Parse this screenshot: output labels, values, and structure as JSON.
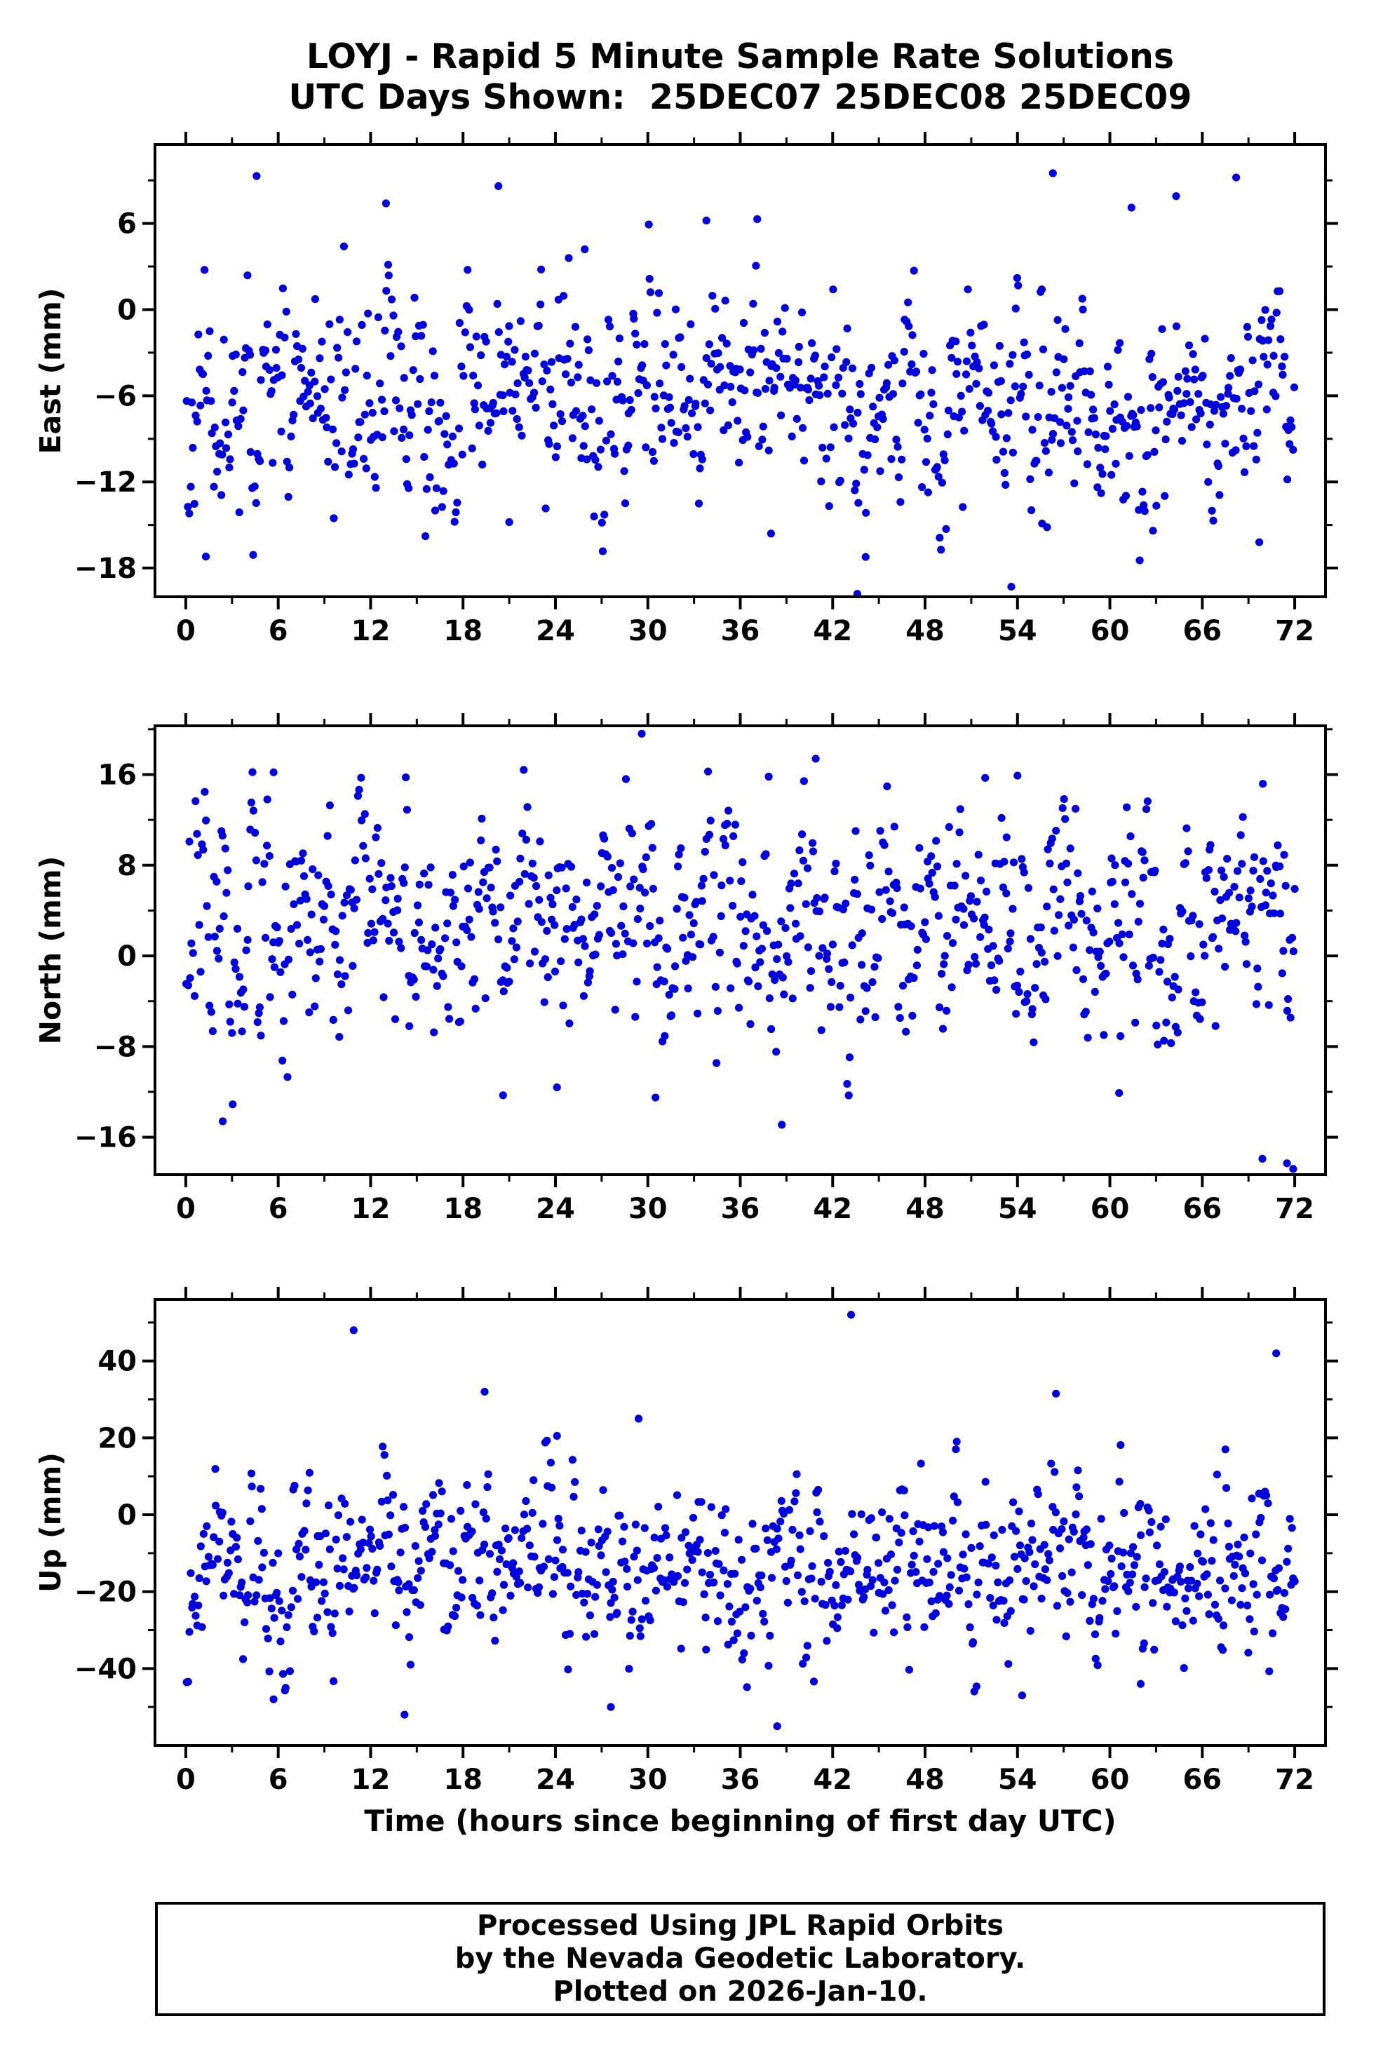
{
  "title": {
    "line1": "LOYJ - Rapid 5 Minute Sample Rate Solutions",
    "line2": "UTC Days Shown:  25DEC07 25DEC08 25DEC09"
  },
  "xlabel": "Time (hours since beginning of first day UTC)",
  "footer": {
    "line1": "Processed Using JPL Rapid Orbits",
    "line2": "by the Nevada Geodetic Laboratory.",
    "line3": "Plotted on 2026-Jan-10."
  },
  "marker_color": "#0000dd",
  "chart_data": [
    {
      "type": "scatter",
      "name": "east",
      "ylabel": "East (mm)",
      "xlim": [
        -2,
        74
      ],
      "ylim": [
        -20,
        11.5
      ],
      "xticks": [
        0,
        6,
        12,
        18,
        24,
        30,
        36,
        42,
        48,
        54,
        60,
        66,
        72
      ],
      "xminor_step": 3,
      "yticks": [
        -18,
        -12,
        -6,
        0,
        6
      ],
      "yminor_step": 3,
      "x_start": 0.05,
      "x_end": 72,
      "n_points": 860,
      "mean": -6.2,
      "std": 3.9,
      "rho": 0.5,
      "clip": [
        -17.5,
        8.2
      ],
      "seed": 11,
      "outliers": [
        [
          4.6,
          9.3
        ],
        [
          13.0,
          7.4
        ],
        [
          20.3,
          8.6
        ],
        [
          25.9,
          4.2
        ],
        [
          33.8,
          6.2
        ],
        [
          37.1,
          6.3
        ],
        [
          56.3,
          9.5
        ],
        [
          61.4,
          7.1
        ],
        [
          64.3,
          7.9
        ],
        [
          68.2,
          9.2
        ],
        [
          43.6,
          -19.8
        ],
        [
          53.6,
          -19.3
        ],
        [
          1.3,
          -17.2
        ],
        [
          21.0,
          -14.8
        ],
        [
          38.0,
          -15.6
        ],
        [
          55.6,
          -14.9
        ],
        [
          62.8,
          -15.4
        ],
        [
          69.7,
          -16.2
        ]
      ]
    },
    {
      "type": "scatter",
      "name": "north",
      "ylabel": "North (mm)",
      "xlim": [
        -2,
        74
      ],
      "ylim": [
        -19.3,
        20.3
      ],
      "xticks": [
        0,
        6,
        12,
        18,
        24,
        30,
        36,
        42,
        48,
        54,
        60,
        66,
        72
      ],
      "xminor_step": 3,
      "yticks": [
        -16,
        -8,
        0,
        8,
        16
      ],
      "yminor_step": 4,
      "x_start": 0.05,
      "x_end": 72,
      "n_points": 860,
      "mean": 2.6,
      "std": 5.2,
      "rho": 0.5,
      "clip": [
        -13.5,
        16.5
      ],
      "seed": 22,
      "outliers": [
        [
          29.6,
          19.6
        ],
        [
          5.7,
          16.2
        ],
        [
          40.9,
          17.4
        ],
        [
          51.9,
          15.7
        ],
        [
          54.0,
          15.9
        ],
        [
          2.4,
          -14.6
        ],
        [
          20.6,
          -12.3
        ],
        [
          24.1,
          -11.6
        ],
        [
          30.5,
          -12.5
        ],
        [
          38.7,
          -14.9
        ],
        [
          60.6,
          -12.1
        ],
        [
          69.9,
          -17.9
        ],
        [
          71.5,
          -18.3
        ],
        [
          71.9,
          -18.8
        ]
      ]
    },
    {
      "type": "scatter",
      "name": "up",
      "ylabel": "Up (mm)",
      "xlim": [
        -2,
        74
      ],
      "ylim": [
        -60,
        56
      ],
      "xticks": [
        0,
        6,
        12,
        18,
        24,
        30,
        36,
        42,
        48,
        54,
        60,
        66,
        72
      ],
      "xminor_step": 3,
      "yticks": [
        -40,
        -20,
        0,
        20,
        40
      ],
      "yminor_step": 10,
      "x_start": 0.05,
      "x_end": 72,
      "n_points": 860,
      "mean": -15,
      "std": 12,
      "rho": 0.5,
      "clip": [
        -46,
        24
      ],
      "seed": 33,
      "outliers": [
        [
          43.2,
          52
        ],
        [
          10.9,
          48
        ],
        [
          70.8,
          42
        ],
        [
          19.4,
          32
        ],
        [
          56.5,
          31.5
        ],
        [
          24.1,
          20.5
        ],
        [
          29.4,
          25
        ],
        [
          67.5,
          17
        ],
        [
          14.2,
          -52
        ],
        [
          27.6,
          -50
        ],
        [
          38.4,
          -55
        ],
        [
          54.3,
          -47
        ],
        [
          5.7,
          -48
        ],
        [
          62.0,
          -44
        ]
      ]
    }
  ]
}
